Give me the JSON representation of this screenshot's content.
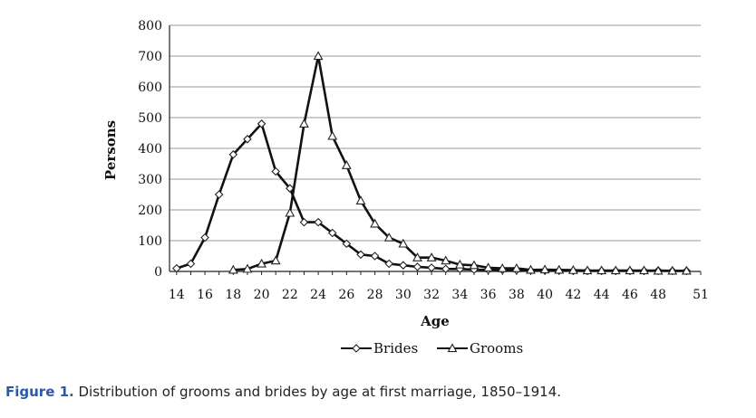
{
  "chart_data": {
    "type": "line",
    "xlabel": "Age",
    "ylabel": "Persons",
    "ylim": [
      0,
      800
    ],
    "yticks": [
      0,
      100,
      200,
      300,
      400,
      500,
      600,
      700,
      800
    ],
    "xtick_labels": [
      "14",
      "16",
      "18",
      "20",
      "22",
      "24",
      "26",
      "28",
      "30",
      "32",
      "34",
      "36",
      "38",
      "40",
      "42",
      "44",
      "46",
      "48",
      "51"
    ],
    "grid": "horizontal",
    "legend_position": "bottom",
    "series": [
      {
        "name": "Brides",
        "marker": "diamond",
        "x": [
          14,
          15,
          16,
          17,
          18,
          19,
          20,
          21,
          22,
          23,
          24,
          25,
          26,
          27,
          28,
          29,
          30,
          31,
          32,
          33,
          34,
          35,
          36,
          37,
          38,
          39,
          40,
          41,
          42,
          43,
          44,
          45,
          46,
          47,
          48,
          49,
          50
        ],
        "y": [
          10,
          25,
          110,
          250,
          380,
          430,
          480,
          325,
          270,
          160,
          160,
          125,
          90,
          55,
          50,
          25,
          20,
          15,
          12,
          8,
          8,
          6,
          5,
          5,
          4,
          3,
          3,
          3,
          2,
          2,
          2,
          2,
          2,
          2,
          3,
          2,
          2
        ]
      },
      {
        "name": "Grooms",
        "marker": "triangle",
        "x": [
          18,
          19,
          20,
          21,
          22,
          23,
          24,
          25,
          26,
          27,
          28,
          29,
          30,
          31,
          32,
          33,
          34,
          35,
          36,
          37,
          38,
          39,
          40,
          41,
          42,
          43,
          44,
          45,
          46,
          47,
          48,
          49,
          50
        ],
        "y": [
          5,
          8,
          25,
          35,
          190,
          480,
          700,
          440,
          345,
          230,
          155,
          110,
          90,
          45,
          45,
          35,
          22,
          20,
          12,
          10,
          10,
          5,
          6,
          5,
          4,
          3,
          3,
          3,
          3,
          3,
          2,
          2,
          2
        ]
      }
    ]
  },
  "caption": {
    "label": "Figure 1.",
    "text": " Distribution of grooms and brides by age at first marriage, 1850–1914."
  }
}
